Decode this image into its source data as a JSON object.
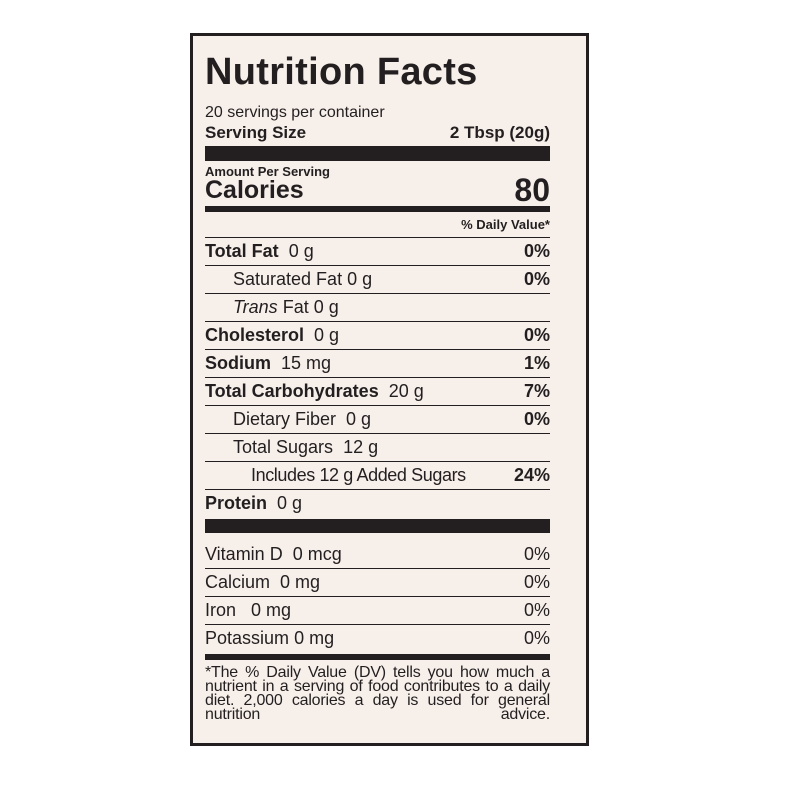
{
  "title": "Nutrition Facts",
  "servings": "20 servings per container",
  "serving_size": {
    "label": "Serving Size",
    "value": "2 Tbsp (20g)"
  },
  "amount_per_serving": "Amount Per Serving",
  "calories": {
    "label": "Calories",
    "value": "80"
  },
  "dv_header": "% Daily Value*",
  "nutrients": [
    {
      "name": "Total Fat",
      "amount": "0 g",
      "dv": "0%"
    },
    {
      "name": "Saturated Fat",
      "amount": "0 g",
      "dv": "0%"
    },
    {
      "name": "Trans",
      "name_rest": "Fat",
      "amount": "0 g"
    },
    {
      "name": "Cholesterol",
      "amount": "0 g",
      "dv": "0%"
    },
    {
      "name": "Sodium",
      "amount": "15 mg",
      "dv": "1%"
    },
    {
      "name": "Total Carbohydrates",
      "amount": "20 g",
      "dv": "7%"
    },
    {
      "name": "Dietary Fiber",
      "amount": "0 g",
      "dv": "0%"
    },
    {
      "name": "Total Sugars",
      "amount": "12 g"
    },
    {
      "name": "Includes 12 g Added Sugars",
      "dv": "24%"
    },
    {
      "name": "Protein",
      "amount": "0 g"
    }
  ],
  "vitamins": [
    {
      "name": "Vitamin D",
      "amount": "0 mcg",
      "dv": "0%"
    },
    {
      "name": "Calcium",
      "amount": "0 mg",
      "dv": "0%"
    },
    {
      "name": "Iron",
      "amount": "0 mg",
      "dv": "0%"
    },
    {
      "name": "Potassium",
      "amount": "0 mg",
      "dv": "0%"
    }
  ],
  "footnote": "*The % Daily Value (DV) tells you how much a nutrient in a serving of food contributes to a daily diet. 2,000 calories a day is used for general nutrition advice."
}
